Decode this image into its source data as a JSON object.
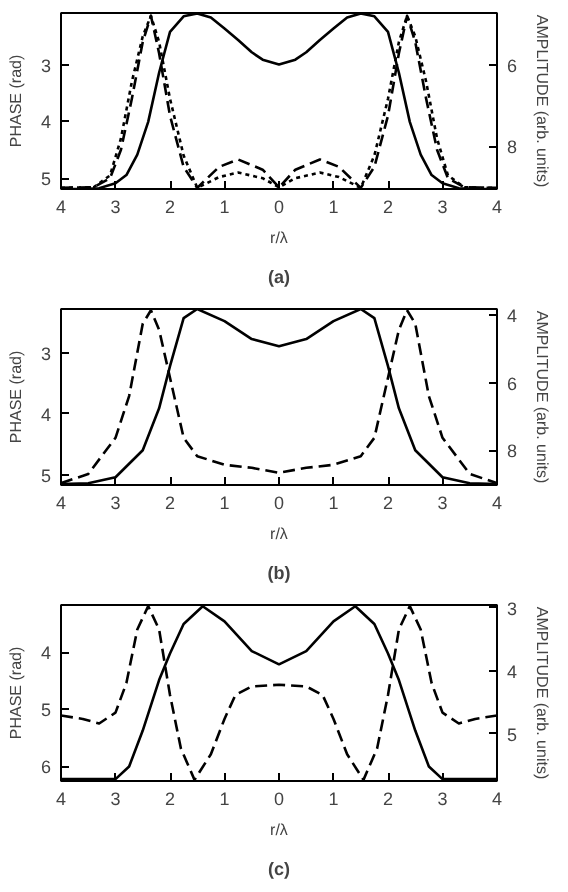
{
  "chart_data": [
    {
      "type": "line",
      "xlabel": "r/λ",
      "ylabel": "PHASE (rad)",
      "y2label": "AMPLITUDE (arb. units)",
      "annotations": [
        "(a)"
      ],
      "grid": false,
      "xlim": [
        -4,
        4
      ],
      "xticks": [
        {
          "value": -4,
          "label": "4"
        },
        {
          "value": -3,
          "label": "3"
        },
        {
          "value": -2,
          "label": "2"
        },
        {
          "value": -1,
          "label": "1"
        },
        0,
        1,
        2,
        3,
        4
      ],
      "ylim": [
        5.19,
        2.09
      ],
      "yticks": [
        3,
        4,
        5
      ],
      "y2lim": [
        9.04,
        4.74
      ],
      "y2ticks": [
        6,
        8
      ],
      "series": [
        {
          "color": "#000000",
          "axis": "y2",
          "line_style": "solid",
          "x": [
            -4,
            -3.6,
            -3.3,
            -3,
            -2.8,
            -2.6,
            -2.4,
            -2.2,
            -2,
            -1.75,
            -1.5,
            -1.25,
            -1,
            -0.75,
            -0.5,
            -0.3,
            0,
            0.3,
            0.5,
            0.75,
            1,
            1.25,
            1.5,
            1.75,
            2,
            2.2,
            2.4,
            2.6,
            2.8,
            3,
            3.3,
            3.6,
            4
          ],
          "values": [
            9.04,
            9.04,
            9.02,
            8.9,
            8.7,
            8.2,
            7.4,
            6.2,
            5.2,
            4.82,
            4.75,
            4.85,
            5.12,
            5.4,
            5.7,
            5.88,
            6.0,
            5.88,
            5.7,
            5.4,
            5.12,
            4.85,
            4.75,
            4.82,
            5.2,
            6.2,
            7.4,
            8.2,
            8.7,
            8.9,
            9.02,
            9.04,
            9.04
          ]
        },
        {
          "color": "#000000",
          "axis": "y",
          "line_style": "dashed",
          "x": [
            -4,
            -3.4,
            -3.1,
            -2.9,
            -2.7,
            -2.5,
            -2.35,
            -2.2,
            -2,
            -1.75,
            -1.5,
            -1.1,
            -0.75,
            -0.3,
            0,
            0.3,
            0.75,
            1.1,
            1.5,
            1.75,
            2,
            2.2,
            2.35,
            2.5,
            2.7,
            2.9,
            3.1,
            3.4,
            4
          ],
          "values": [
            5.17,
            5.16,
            5.0,
            4.5,
            3.6,
            2.6,
            2.14,
            2.8,
            3.9,
            4.8,
            5.17,
            4.8,
            4.67,
            4.85,
            5.16,
            4.85,
            4.67,
            4.8,
            5.17,
            4.8,
            3.9,
            2.8,
            2.14,
            2.6,
            3.6,
            4.5,
            5.0,
            5.16,
            5.17
          ]
        },
        {
          "color": "#000000",
          "axis": "y",
          "line_style": "dotted",
          "x": [
            -4,
            -3.4,
            -3.1,
            -2.9,
            -2.7,
            -2.5,
            -2.35,
            -2.2,
            -2,
            -1.75,
            -1.5,
            -1.1,
            -0.75,
            -0.3,
            0,
            0.3,
            0.75,
            1.1,
            1.5,
            1.75,
            2,
            2.2,
            2.35,
            2.5,
            2.7,
            2.9,
            3.1,
            3.4,
            4
          ],
          "values": [
            5.17,
            5.16,
            4.95,
            4.3,
            3.3,
            2.5,
            2.14,
            2.6,
            3.6,
            4.6,
            5.17,
            4.98,
            4.9,
            5.0,
            5.16,
            5.0,
            4.9,
            4.98,
            5.17,
            4.6,
            3.6,
            2.6,
            2.14,
            2.5,
            3.3,
            4.3,
            4.95,
            5.16,
            5.17
          ]
        }
      ]
    },
    {
      "type": "line",
      "xlabel": "r/λ",
      "ylabel": "PHASE (rad)",
      "y2label": "AMPLITUDE (arb. units)",
      "annotations": [
        "(b)"
      ],
      "grid": false,
      "xlim": [
        -4,
        4
      ],
      "xticks": [
        {
          "value": -4,
          "label": "4"
        },
        {
          "value": -3,
          "label": "3"
        },
        {
          "value": -2,
          "label": "2"
        },
        {
          "value": -1,
          "label": "1"
        },
        0,
        1,
        2,
        3,
        4
      ],
      "ylim": [
        5.16,
        2.29
      ],
      "yticks": [
        3,
        4,
        5
      ],
      "y2lim": [
        9.03,
        3.82
      ],
      "y2ticks": [
        4,
        6,
        8
      ],
      "series": [
        {
          "color": "#000000",
          "axis": "y2",
          "line_style": "solid",
          "x": [
            -4,
            -3.5,
            -3,
            -2.5,
            -2.2,
            -2,
            -1.75,
            -1.5,
            -1,
            -0.5,
            0,
            0.5,
            1,
            1.5,
            1.75,
            2,
            2.2,
            2.5,
            3,
            3.5,
            4
          ],
          "values": [
            9.0,
            8.98,
            8.8,
            8.0,
            6.76,
            5.51,
            4.09,
            3.82,
            4.18,
            4.71,
            4.92,
            4.71,
            4.18,
            3.82,
            4.09,
            5.51,
            6.76,
            8.0,
            8.8,
            8.98,
            9.0
          ]
        },
        {
          "color": "#000000",
          "axis": "y",
          "line_style": "dashed",
          "x": [
            -4,
            -3.5,
            -3,
            -2.75,
            -2.5,
            -2.35,
            -2.2,
            -2,
            -1.75,
            -1.5,
            -1,
            -0.5,
            0,
            0.5,
            1,
            1.5,
            1.75,
            2,
            2.2,
            2.35,
            2.5,
            2.75,
            3,
            3.5,
            4
          ],
          "values": [
            5.13,
            4.98,
            4.39,
            3.71,
            2.53,
            2.31,
            2.63,
            3.41,
            4.39,
            4.69,
            4.83,
            4.88,
            4.96,
            4.88,
            4.83,
            4.69,
            4.39,
            3.41,
            2.63,
            2.31,
            2.53,
            3.71,
            4.39,
            4.98,
            5.13
          ]
        }
      ]
    },
    {
      "type": "line",
      "xlabel": "r/λ",
      "ylabel": "PHASE (rad)",
      "y2label": "AMPLITUDE (arb. units)",
      "annotations": [
        "(c)"
      ],
      "grid": false,
      "xlim": [
        -4,
        4
      ],
      "xticks": [
        {
          "value": -4,
          "label": "4"
        },
        {
          "value": -3,
          "label": "3"
        },
        {
          "value": -2,
          "label": "2"
        },
        {
          "value": -1,
          "label": "1"
        },
        0,
        1,
        2,
        3,
        4
      ],
      "ylim": [
        6.26,
        3.17
      ],
      "yticks": [
        4,
        5,
        6
      ],
      "y2lim": [
        5.75,
        2.96
      ],
      "y2ticks": [
        3,
        4,
        5
      ],
      "series": [
        {
          "color": "#000000",
          "axis": "y2",
          "line_style": "solid",
          "x": [
            -4,
            -3,
            -2.75,
            -2.5,
            -2.2,
            -2,
            -1.75,
            -1.4,
            -1,
            -0.5,
            0,
            0.5,
            1,
            1.4,
            1.75,
            2,
            2.2,
            2.5,
            2.75,
            3,
            4
          ],
          "values": [
            5.72,
            5.72,
            5.52,
            4.95,
            4.15,
            3.73,
            3.26,
            2.98,
            3.22,
            3.69,
            3.9,
            3.69,
            3.22,
            2.98,
            3.26,
            3.73,
            4.15,
            4.95,
            5.52,
            5.72,
            5.72
          ]
        },
        {
          "color": "#000000",
          "axis": "y",
          "line_style": "dashed",
          "x": [
            -4,
            -3.6,
            -3.3,
            -3,
            -2.8,
            -2.6,
            -2.4,
            -2.2,
            -2,
            -1.8,
            -1.55,
            -1.25,
            -1,
            -0.8,
            -0.5,
            0,
            0.5,
            0.8,
            1,
            1.25,
            1.55,
            1.8,
            2,
            2.2,
            2.4,
            2.6,
            2.8,
            3,
            3.3,
            3.6,
            4
          ],
          "values": [
            5.11,
            5.17,
            5.25,
            5.06,
            4.54,
            3.6,
            3.19,
            3.6,
            4.75,
            5.69,
            6.24,
            5.79,
            5.17,
            4.75,
            4.6,
            4.57,
            4.6,
            4.75,
            5.17,
            5.79,
            6.24,
            5.69,
            4.75,
            3.6,
            3.19,
            3.6,
            4.54,
            5.06,
            5.25,
            5.17,
            5.11
          ]
        }
      ]
    }
  ]
}
